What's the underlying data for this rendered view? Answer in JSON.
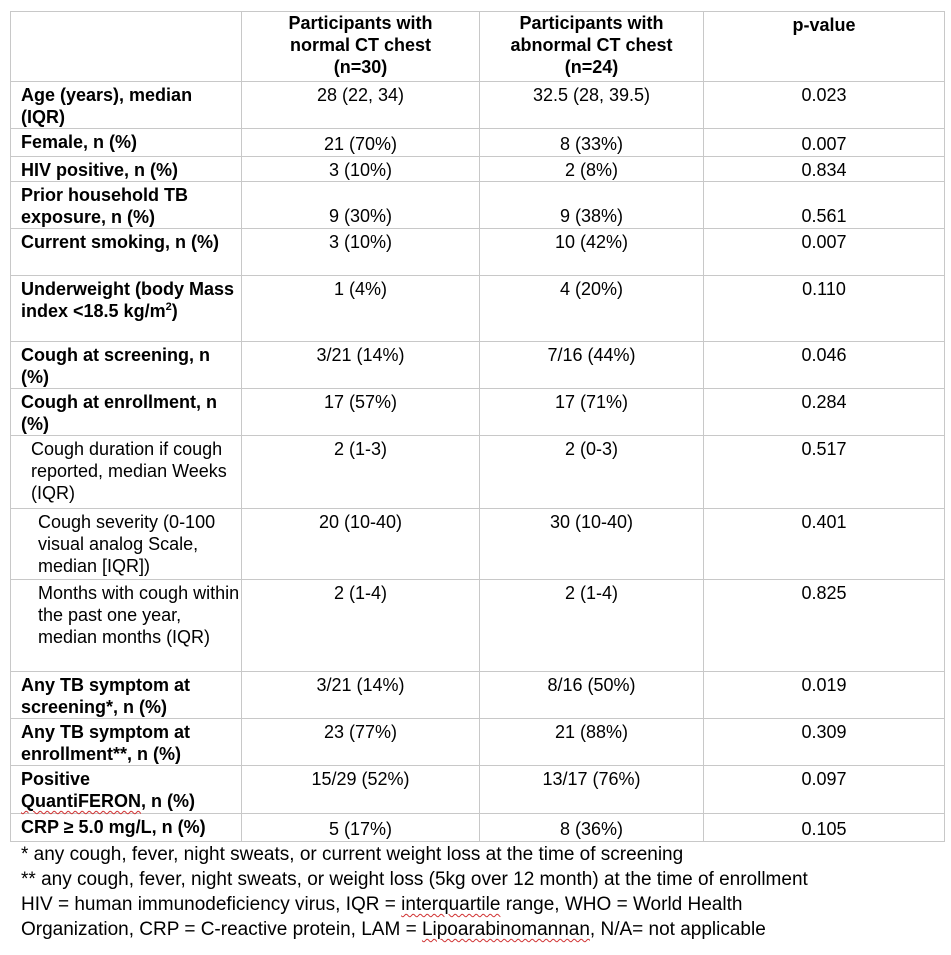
{
  "header": {
    "col0": "",
    "col1": "Participants with normal CT chest (n=30)",
    "col2": "Participants with abnormal CT chest (n=24)",
    "col3": "p-value"
  },
  "rows": [
    {
      "label": "Age (years), median (IQR)",
      "normal": "28 (22, 34)",
      "abnormal": "32.5 (28, 39.5)",
      "p": "0.023"
    },
    {
      "label": "Female, n (%)",
      "normal": "21 (70%)",
      "abnormal": "8 (33%)",
      "p": "0.007"
    },
    {
      "label": "HIV positive, n (%)",
      "normal": "3 (10%)",
      "abnormal": "2 (8%)",
      "p": "0.834"
    },
    {
      "label": "Prior household TB exposure, n (%)",
      "normal": "9 (30%)",
      "abnormal": "9 (38%)",
      "p": "0.561"
    },
    {
      "label": "Current smoking, n (%)",
      "normal": "3 (10%)",
      "abnormal": "10 (42%)",
      "p": "0.007"
    },
    {
      "label": "Underweight (body Mass index <18.5 kg/m",
      "label_sup": "2",
      "label_end": ")",
      "normal": "1 (4%)",
      "abnormal": "4 (20%)",
      "p": "0.110"
    },
    {
      "label": "Cough at screening, n (%)",
      "normal": "3/21 (14%)",
      "abnormal": "7/16 (44%)",
      "p": "0.046"
    },
    {
      "label": "Cough at enrollment, n (%)",
      "normal": "17 (57%)",
      "abnormal": "17 (71%)",
      "p": "0.284"
    },
    {
      "label": "Cough duration if cough reported, median Weeks (IQR)",
      "normal": "2 (1-3)",
      "abnormal": "2 (0-3)",
      "p": "0.517"
    },
    {
      "label": "Cough severity (0-100 visual analog Scale, median [IQR])",
      "normal": "20 (10-40)",
      "abnormal": "30 (10-40)",
      "p": "0.401"
    },
    {
      "label": "Months with cough within the past one year, median months (IQR)",
      "normal": "2 (1-4)",
      "abnormal": "2 (1-4)",
      "p": "0.825"
    },
    {
      "label": "Any TB symptom at screening*, n (%)",
      "normal": "3/21 (14%)",
      "abnormal": "8/16 (50%)",
      "p": "0.019"
    },
    {
      "label": "Any TB symptom at enrollment**, n (%)",
      "normal": "23 (77%)",
      "abnormal": "21 (88%)",
      "p": "0.309"
    },
    {
      "label_a": "Positive",
      "label_b": "QuantiFERON",
      "label_c": ", n (%)",
      "normal": "15/29 (52%)",
      "abnormal": "13/17 (76%)",
      "p": "0.097"
    },
    {
      "label": "CRP ≥ 5.0 mg/L, n (%)",
      "normal": "5 (17%)",
      "abnormal": "8 (36%)",
      "p": "0.105"
    }
  ],
  "footnotes": {
    "f1": "* any cough, fever, night sweats, or current weight loss at the time of screening",
    "f2": "** any cough, fever, night sweats, or weight loss (5kg over 12 month) at the time of enrollment",
    "f3a": "HIV = human immunodeficiency virus, IQR = ",
    "f3b": "interquartile",
    "f3c": " range, WHO = World Health",
    "f4a": "Organization, CRP = C-reactive protein, LAM = ",
    "f4b": "Lipoarabinomannan",
    "f4c": ", N/A= not applicable"
  },
  "colors": {
    "border": "#c8c8c8",
    "spellcheck": "#d03030"
  }
}
